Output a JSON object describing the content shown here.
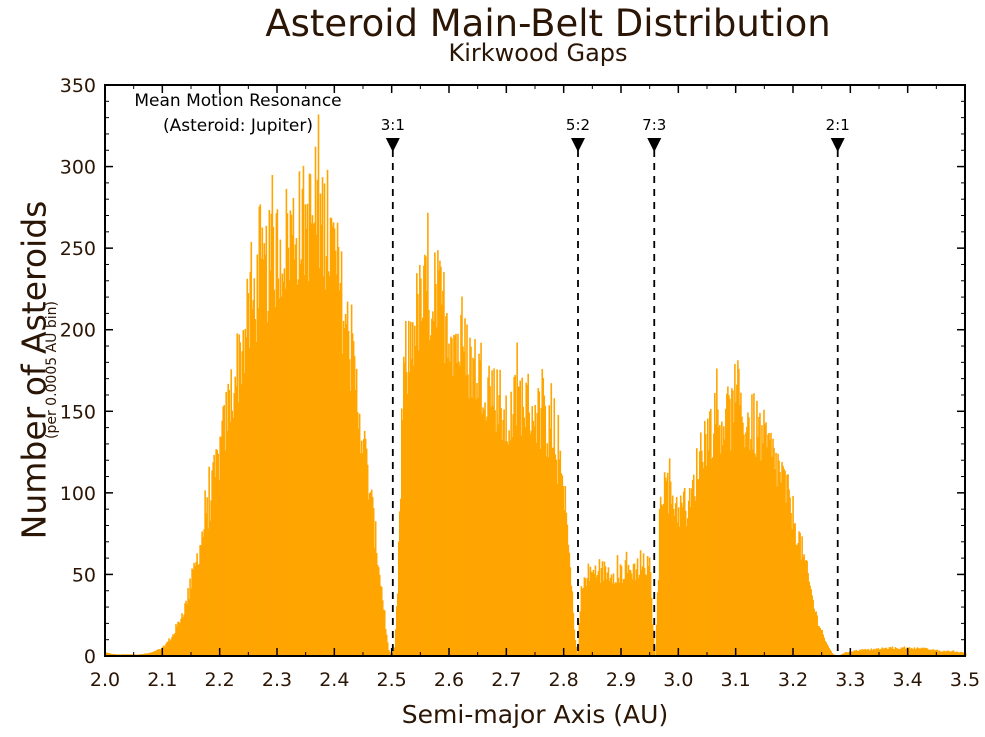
{
  "chart_data": {
    "type": "histogram",
    "title": "Asteroid Main-Belt Distribution",
    "subtitle": "Kirkwood Gaps",
    "xlabel": "Semi-major Axis (AU)",
    "ylabel": "Number of Asteroids",
    "ylabel_sub": "(per 0.0005 AU bin)",
    "xlim": [
      2.0,
      3.5
    ],
    "ylim": [
      0,
      350
    ],
    "xticks": [
      2.0,
      2.1,
      2.2,
      2.3,
      2.4,
      2.5,
      2.6,
      2.7,
      2.8,
      2.9,
      3.0,
      3.1,
      3.2,
      3.3,
      3.4,
      3.5
    ],
    "xtick_labels": [
      "2.0",
      "2.1",
      "2.2",
      "2.3",
      "2.4",
      "2.5",
      "2.6",
      "2.7",
      "2.8",
      "2.9",
      "3.0",
      "3.1",
      "3.2",
      "3.3",
      "3.4",
      "3.5"
    ],
    "yticks": [
      0,
      50,
      100,
      150,
      200,
      250,
      300,
      350
    ],
    "ytick_labels": [
      "0",
      "50",
      "100",
      "150",
      "200",
      "250",
      "300",
      "350"
    ],
    "bar_color": "#FFA500",
    "grid": false,
    "bin_width_au": 0.0005,
    "envelope": {
      "x": [
        2.0,
        2.02,
        2.04,
        2.06,
        2.08,
        2.1,
        2.12,
        2.14,
        2.16,
        2.18,
        2.2,
        2.22,
        2.24,
        2.26,
        2.28,
        2.3,
        2.32,
        2.34,
        2.36,
        2.38,
        2.4,
        2.42,
        2.44,
        2.46,
        2.48,
        2.49,
        2.495,
        2.5,
        2.505,
        2.51,
        2.52,
        2.54,
        2.56,
        2.58,
        2.6,
        2.62,
        2.64,
        2.66,
        2.68,
        2.7,
        2.72,
        2.74,
        2.76,
        2.78,
        2.8,
        2.81,
        2.82,
        2.824,
        2.83,
        2.84,
        2.86,
        2.88,
        2.9,
        2.92,
        2.94,
        2.95,
        2.955,
        2.96,
        2.97,
        2.98,
        3.0,
        3.02,
        3.04,
        3.06,
        3.08,
        3.1,
        3.12,
        3.14,
        3.16,
        3.18,
        3.2,
        3.22,
        3.24,
        3.26,
        3.27,
        3.278,
        3.29,
        3.3,
        3.32,
        3.34,
        3.36,
        3.38,
        3.4,
        3.42,
        3.44,
        3.46,
        3.48,
        3.5
      ],
      "y": [
        2,
        1,
        1,
        1,
        2,
        5,
        14,
        32,
        62,
        95,
        130,
        168,
        200,
        228,
        245,
        258,
        268,
        275,
        278,
        278,
        255,
        212,
        165,
        110,
        50,
        15,
        3,
        0,
        5,
        40,
        170,
        215,
        230,
        228,
        213,
        196,
        186,
        178,
        168,
        145,
        165,
        160,
        152,
        140,
        108,
        60,
        10,
        0,
        40,
        52,
        54,
        54,
        53,
        55,
        58,
        56,
        20,
        0,
        110,
        108,
        94,
        95,
        135,
        148,
        152,
        152,
        150,
        143,
        130,
        115,
        90,
        60,
        26,
        6,
        1,
        0,
        2,
        3,
        4,
        4,
        5,
        5,
        5,
        5,
        4,
        3,
        3,
        2
      ]
    },
    "resonances": [
      {
        "label": "3:1",
        "x": 2.502
      },
      {
        "label": "5:2",
        "x": 2.825
      },
      {
        "label": "7:3",
        "x": 2.958
      },
      {
        "label": "2:1",
        "x": 3.278
      }
    ],
    "annotations": [
      "Mean Motion Resonance",
      "(Asteroid: Jupiter)"
    ]
  }
}
